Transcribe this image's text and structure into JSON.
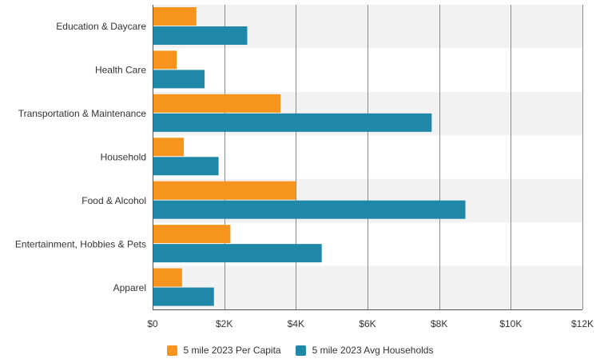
{
  "chart_data": {
    "type": "bar",
    "orientation": "horizontal",
    "title": "",
    "xlabel": "",
    "ylabel": "",
    "categories": [
      "Education & Daycare",
      "Health Care",
      "Transportation & Maintenance",
      "Household",
      "Food & Alcohol",
      "Entertainment, Hobbies & Pets",
      "Apparel"
    ],
    "series": [
      {
        "name": "5 mile 2023 Per Capita",
        "color": "#f7941d",
        "values": [
          1200,
          650,
          3550,
          850,
          3980,
          2150,
          800
        ]
      },
      {
        "name": "5 mile 2023 Avg Households",
        "color": "#1f87a8",
        "values": [
          2620,
          1430,
          7770,
          1820,
          8710,
          4700,
          1690
        ]
      }
    ],
    "xlim": [
      0,
      12000
    ],
    "x_ticks": [
      0,
      2000,
      4000,
      6000,
      8000,
      10000,
      12000
    ],
    "x_tick_labels": [
      "$0",
      "$2K",
      "$4K",
      "$6K",
      "$8K",
      "$10K",
      "$12K"
    ],
    "grid": true,
    "band_color": "#f2f2f2",
    "legend_position": "bottom-center"
  }
}
